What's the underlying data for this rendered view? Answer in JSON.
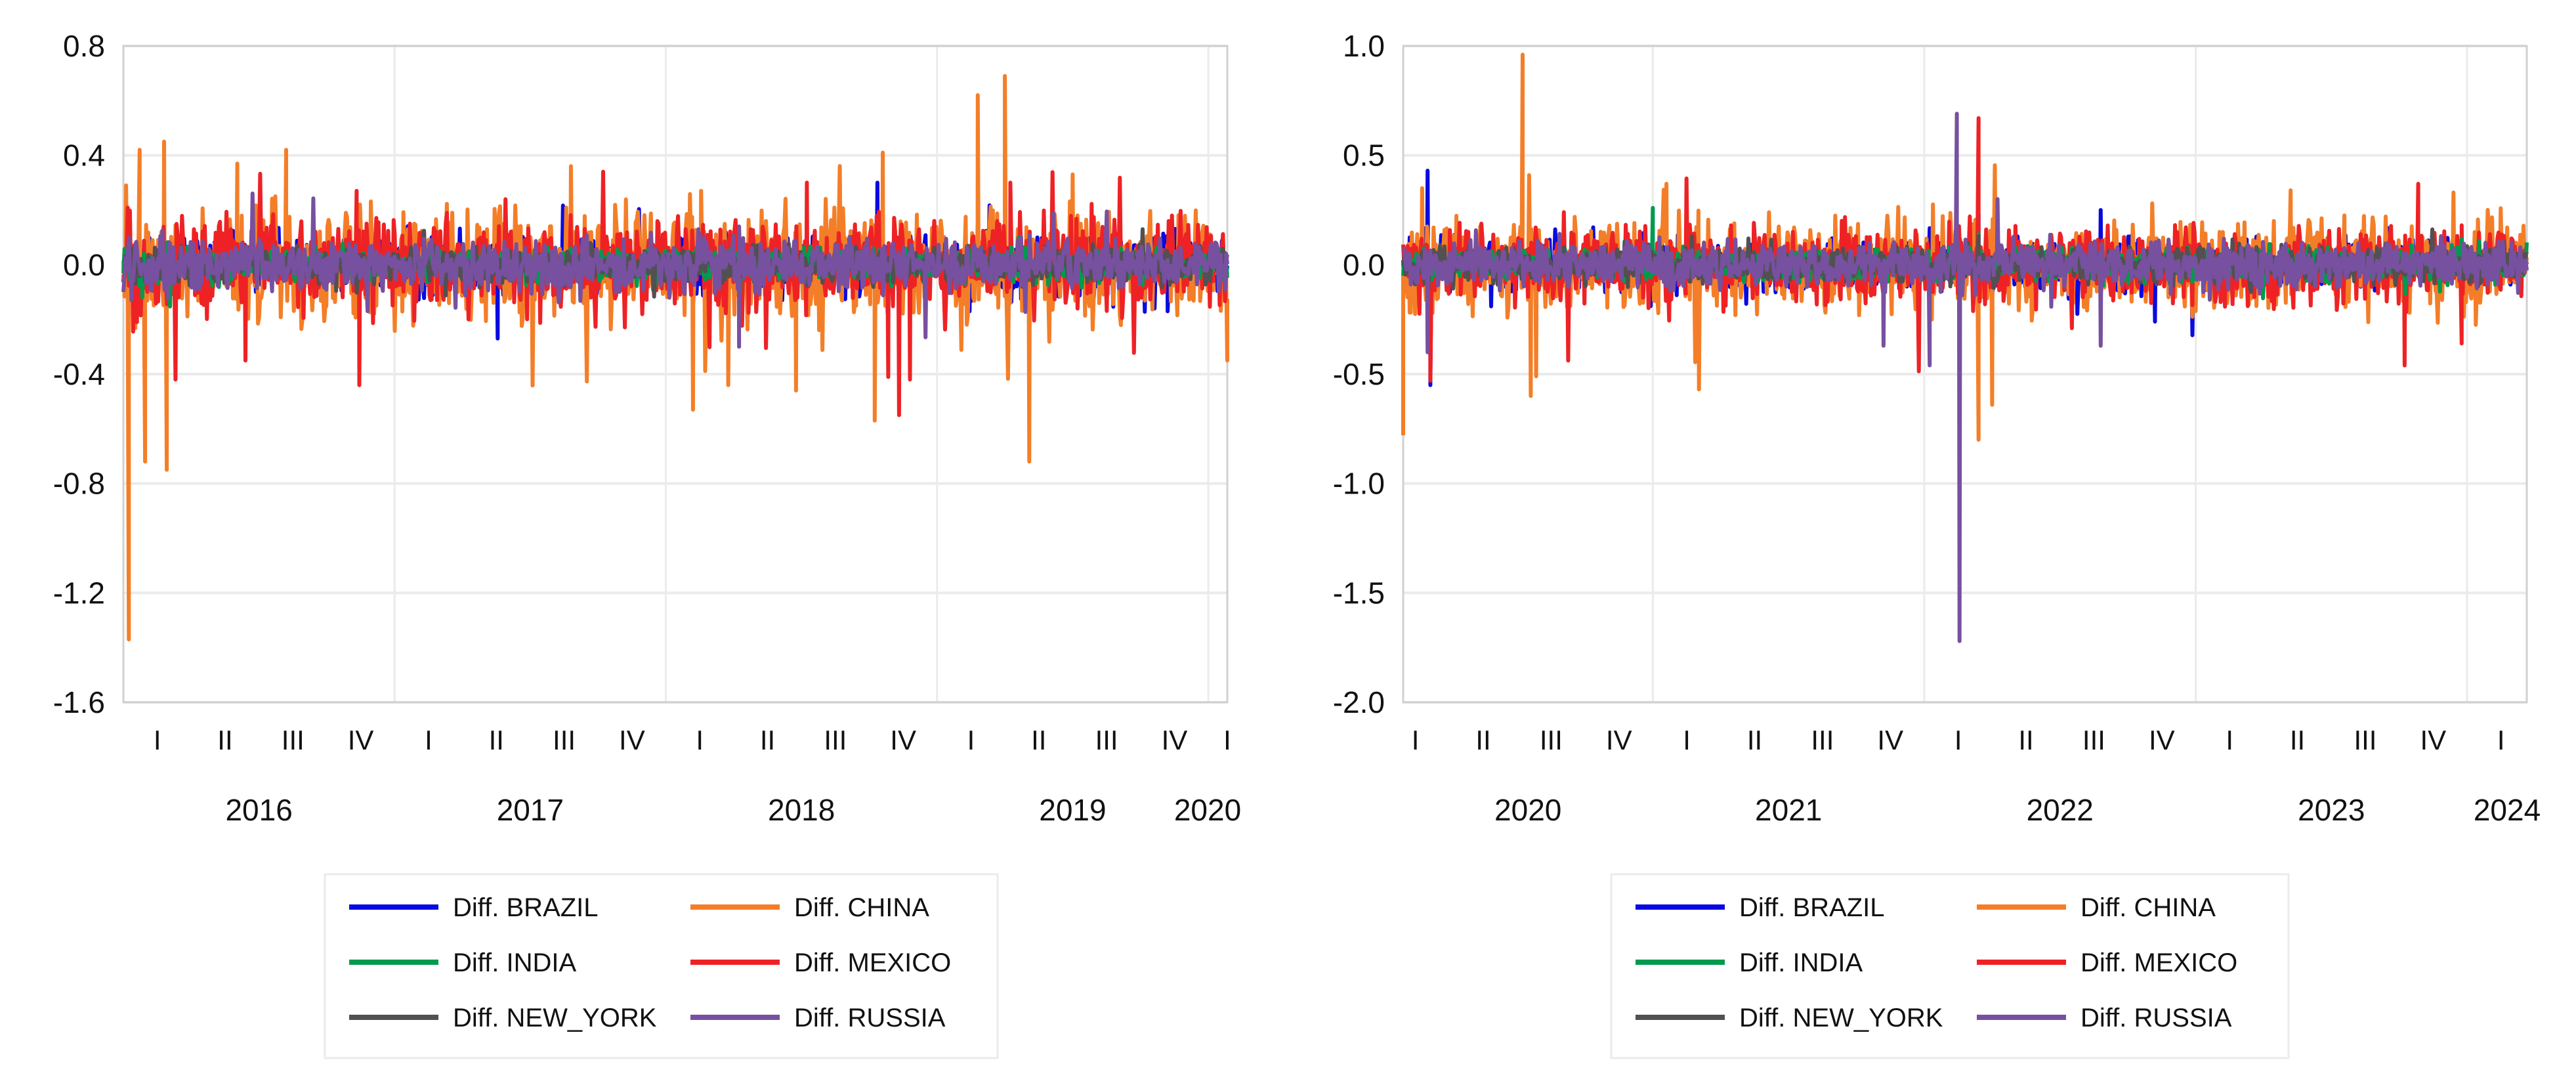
{
  "colors": {
    "BRAZIL": "#0a0ae0",
    "CHINA": "#f47e28",
    "INDIA": "#009a4e",
    "MEXICO": "#ee2225",
    "NEW_YORK": "#525052",
    "RUSSIA": "#7750a0",
    "grid": "#ebebeb",
    "axis": "#d0d0d0"
  },
  "chart_data": [
    {
      "type": "line",
      "title": "",
      "xlabel": "",
      "ylabel": "",
      "xlim": [
        2016.0,
        2020.07
      ],
      "ylim": [
        -1.6,
        0.8
      ],
      "yticks": [
        "0.8",
        "0.4",
        "0.0",
        "-0.4",
        "-0.8",
        "-1.2",
        "-1.6"
      ],
      "ytick_values": [
        0.8,
        0.4,
        0.0,
        -0.4,
        -0.8,
        -1.2,
        -1.6
      ],
      "quarter_labels": [
        "I",
        "II",
        "III",
        "IV",
        "I",
        "II",
        "III",
        "IV",
        "I",
        "II",
        "III",
        "IV",
        "I",
        "II",
        "III",
        "IV",
        "I"
      ],
      "year_labels": [
        "2016",
        "2017",
        "2018",
        "2019",
        "2020"
      ],
      "year_values": [
        2016,
        2017,
        2018,
        2019,
        2020
      ],
      "grid": true,
      "legend_placement": "bottom",
      "legend": [
        "Diff. BRAZIL",
        "Diff. CHINA",
        "Diff. INDIA",
        "Diff. MEXICO",
        "Diff. NEW_YORK",
        "Diff. RUSSIA"
      ],
      "series": [
        {
          "name": "Diff. BRAZIL",
          "key": "BRAZIL",
          "typical_amplitude": 0.05,
          "extremes": [
            [
              2017.38,
              -0.27
            ],
            [
              2018.78,
              0.3
            ],
            [
              2019.12,
              -0.17
            ],
            [
              2019.85,
              -0.17
            ]
          ]
        },
        {
          "name": "Diff. CHINA",
          "key": "CHINA",
          "typical_amplitude": 0.1,
          "extremes": [
            [
              2016.01,
              0.29
            ],
            [
              2016.02,
              -1.37
            ],
            [
              2016.06,
              0.42
            ],
            [
              2016.08,
              -0.72
            ],
            [
              2016.15,
              0.45
            ],
            [
              2016.16,
              -0.75
            ],
            [
              2016.42,
              0.37
            ],
            [
              2016.6,
              0.42
            ],
            [
              2017.65,
              0.36
            ],
            [
              2018.1,
              -0.53
            ],
            [
              2018.13,
              0.27
            ],
            [
              2018.23,
              -0.44
            ],
            [
              2018.48,
              -0.46
            ],
            [
              2018.77,
              -0.57
            ],
            [
              2018.8,
              0.41
            ],
            [
              2019.15,
              0.62
            ],
            [
              2019.25,
              0.69
            ],
            [
              2019.34,
              -0.72
            ],
            [
              2019.5,
              0.33
            ],
            [
              2020.07,
              -0.35
            ]
          ]
        },
        {
          "name": "Diff. INDIA",
          "key": "INDIA",
          "typical_amplitude": 0.03,
          "extremes": [
            [
              2016.07,
              -0.12
            ],
            [
              2019.3,
              0.1
            ]
          ]
        },
        {
          "name": "Diff. MEXICO",
          "key": "MEXICO",
          "typical_amplitude": 0.08,
          "extremes": [
            [
              2016.05,
              -0.21
            ],
            [
              2016.45,
              -0.35
            ],
            [
              2016.86,
              0.27
            ],
            [
              2016.87,
              -0.44
            ],
            [
              2018.52,
              0.3
            ],
            [
              2018.82,
              -0.41
            ],
            [
              2018.86,
              -0.55
            ],
            [
              2018.9,
              -0.42
            ],
            [
              2019.27,
              0.3
            ]
          ]
        },
        {
          "name": "Diff. NEW_YORK",
          "key": "NEW_YORK",
          "typical_amplitude": 0.03,
          "extremes": [
            [
              2018.12,
              0.1
            ]
          ]
        },
        {
          "name": "Diff. RUSSIA",
          "key": "RUSSIA",
          "typical_amplitude": 0.045,
          "extremes": [
            [
              2016.03,
              -0.13
            ],
            [
              2018.12,
              0.13
            ],
            [
              2018.27,
              -0.3
            ],
            [
              2018.27,
              0.14
            ]
          ]
        }
      ]
    },
    {
      "type": "line",
      "title": "",
      "xlabel": "",
      "ylabel": "",
      "xlim": [
        2020.08,
        2024.22
      ],
      "ylim": [
        -2.0,
        1.0
      ],
      "yticks": [
        "1.0",
        "0.5",
        "0.0",
        "-0.5",
        "-1.0",
        "-1.5",
        "-2.0"
      ],
      "ytick_values": [
        1.0,
        0.5,
        0.0,
        -0.5,
        -1.0,
        -1.5,
        -2.0
      ],
      "quarter_labels": [
        "I",
        "II",
        "III",
        "IV",
        "I",
        "II",
        "III",
        "IV",
        "I",
        "II",
        "III",
        "IV",
        "I",
        "II",
        "III",
        "IV",
        "I"
      ],
      "year_labels": [
        "2020",
        "2021",
        "2022",
        "2023",
        "2024"
      ],
      "year_values": [
        2020,
        2021,
        2022,
        2023,
        2024
      ],
      "grid": true,
      "legend_placement": "bottom",
      "legend": [
        "Diff. BRAZIL",
        "Diff. CHINA",
        "Diff. INDIA",
        "Diff. MEXICO",
        "Diff. NEW_YORK",
        "Diff. RUSSIA"
      ],
      "series": [
        {
          "name": "Diff. BRAZIL",
          "key": "BRAZIL",
          "typical_amplitude": 0.06,
          "extremes": [
            [
              2020.17,
              0.43
            ],
            [
              2020.18,
              -0.55
            ],
            [
              2022.2,
              0.23
            ],
            [
              2022.65,
              0.25
            ],
            [
              2022.85,
              -0.26
            ]
          ]
        },
        {
          "name": "Diff. CHINA",
          "key": "CHINA",
          "typical_amplitude": 0.1,
          "extremes": [
            [
              2020.08,
              -0.78
            ],
            [
              2020.15,
              0.35
            ],
            [
              2020.52,
              0.96
            ],
            [
              2020.55,
              -0.6
            ],
            [
              2020.57,
              -0.51
            ],
            [
              2021.05,
              0.37
            ],
            [
              2021.17,
              -0.57
            ],
            [
              2022.2,
              -0.8
            ],
            [
              2022.25,
              -0.64
            ],
            [
              2023.35,
              0.34
            ],
            [
              2023.95,
              0.33
            ]
          ]
        },
        {
          "name": "Diff. INDIA",
          "key": "INDIA",
          "typical_amplitude": 0.035,
          "extremes": [
            [
              2021.0,
              0.26
            ],
            [
              2022.2,
              0.14
            ]
          ]
        },
        {
          "name": "Diff. MEXICO",
          "key": "MEXICO",
          "typical_amplitude": 0.08,
          "extremes": [
            [
              2020.18,
              -0.53
            ],
            [
              2022.2,
              0.67
            ],
            [
              2023.77,
              -0.46
            ],
            [
              2023.82,
              0.37
            ],
            [
              2023.98,
              -0.36
            ]
          ]
        },
        {
          "name": "Diff. NEW_YORK",
          "key": "NEW_YORK",
          "typical_amplitude": 0.04,
          "extremes": [
            [
              2022.2,
              0.13
            ]
          ]
        },
        {
          "name": "Diff. RUSSIA",
          "key": "RUSSIA",
          "typical_amplitude": 0.05,
          "extremes": [
            [
              2020.17,
              -0.4
            ],
            [
              2021.85,
              -0.37
            ],
            [
              2022.02,
              -0.46
            ],
            [
              2022.12,
              0.69
            ],
            [
              2022.13,
              -1.72
            ],
            [
              2022.27,
              0.3
            ],
            [
              2022.65,
              -0.37
            ]
          ]
        }
      ]
    }
  ]
}
